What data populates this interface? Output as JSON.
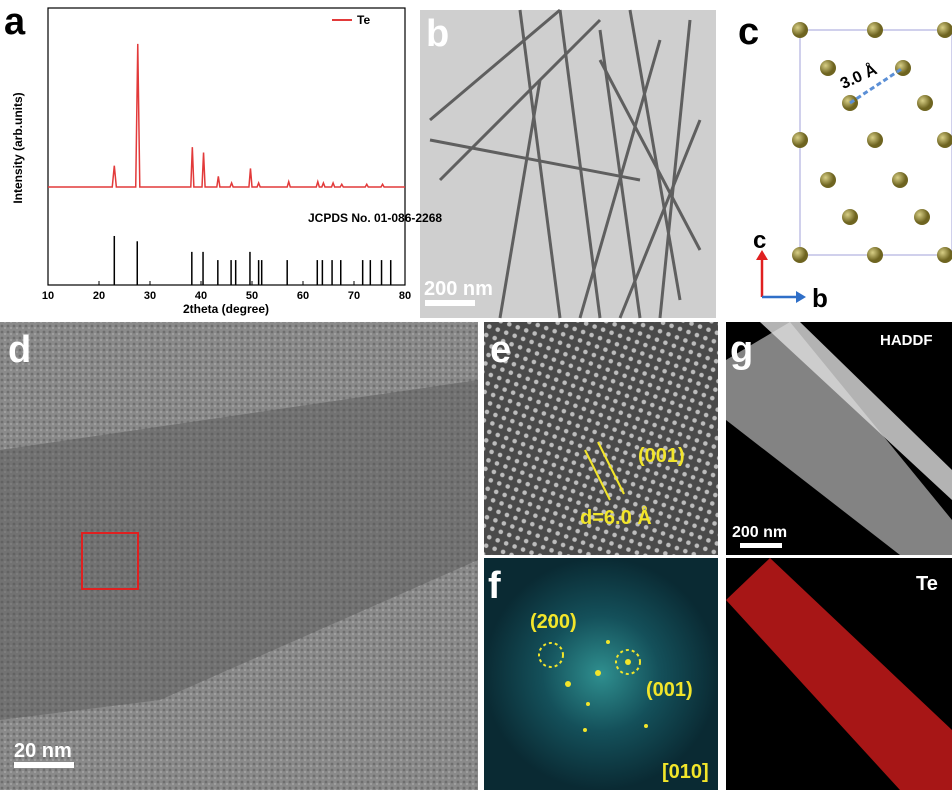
{
  "chart_data": {
    "type": "line",
    "xlabel": "2theta (degree)",
    "ylabel": "Intensity (arb.units)",
    "xlim": [
      10,
      80
    ],
    "xticks": [
      10,
      20,
      30,
      40,
      50,
      60,
      70,
      80
    ],
    "ylim": [
      0,
      100
    ],
    "legend": "upper right",
    "series": [
      {
        "name": "Te",
        "color": "#e23a3a",
        "x": [
          10,
          22.6,
          23.0,
          23.4,
          27.2,
          27.6,
          28.0,
          38.0,
          38.3,
          38.6,
          40.2,
          40.5,
          40.8,
          43.1,
          43.4,
          43.7,
          45.7,
          46.0,
          46.3,
          49.4,
          49.7,
          50.0,
          51.0,
          51.3,
          51.6,
          56.9,
          57.2,
          57.5,
          62.6,
          62.9,
          63.2,
          63.7,
          64.0,
          64.3,
          65.6,
          65.9,
          66.2,
          67.3,
          67.6,
          67.9,
          72.2,
          72.5,
          72.8,
          75.3,
          75.6,
          75.9,
          80
        ],
        "values": [
          37,
          37,
          45,
          37,
          37,
          91,
          37,
          37,
          52,
          37,
          37,
          50,
          37,
          37,
          41,
          37,
          37,
          38.5,
          37,
          37,
          44,
          37,
          37,
          38.5,
          37,
          37,
          39,
          37,
          37,
          39,
          37,
          37,
          38.5,
          37,
          37,
          38.5,
          37,
          37,
          38,
          37,
          37,
          38,
          37,
          37,
          38,
          37,
          37
        ]
      }
    ],
    "reference": {
      "label": "JCPDS No. 01-086-2268",
      "color": "#000000",
      "positions": [
        23.0,
        27.5,
        38.2,
        40.4,
        43.3,
        45.9,
        46.8,
        49.6,
        51.3,
        51.9,
        56.9,
        62.8,
        63.8,
        65.7,
        67.4,
        71.7,
        73.2,
        75.4,
        77.2
      ],
      "heights": [
        18.5,
        16.5,
        12.5,
        12.5,
        9.4,
        9.4,
        9.4,
        12.5,
        9.4,
        9.4,
        9.4,
        9.4,
        9.4,
        9.4,
        9.4,
        9.4,
        9.4,
        9.4,
        9.4
      ]
    }
  },
  "panels": {
    "a": "a",
    "b": {
      "letter": "b",
      "scale": "200 nm"
    },
    "c": {
      "letter": "c",
      "distance": "3.0 Å",
      "axis_up": "c",
      "axis_right": "b"
    },
    "d": {
      "letter": "d",
      "scale": "20 nm"
    },
    "e": {
      "letter": "e",
      "plane": "(001)",
      "spacing": "d=6.0 Å"
    },
    "f": {
      "letter": "f",
      "spot1": "(200)",
      "spot2": "(001)",
      "zone": "[010]"
    },
    "g": {
      "letter": "g",
      "mode": "HADDF",
      "scale": "200 nm"
    },
    "map": {
      "element": "Te"
    }
  }
}
